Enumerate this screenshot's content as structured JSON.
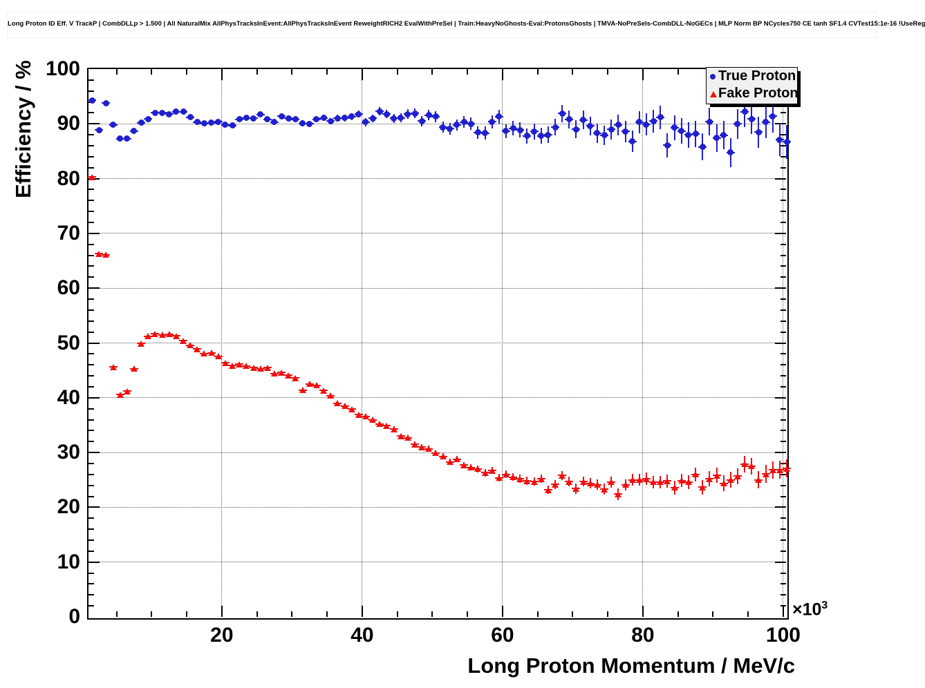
{
  "header": {
    "title": "Long Proton ID Eff. V TrackP | CombDLLp > 1.500 | All NaturalMix AllPhysTracksInEvent:AllPhysTracksInEvent ReweightRICH2 EvalWithPreSel | Train:HeavyNoGhosts-Eval:ProtonsGhosts | TMVA-NoPreSels-CombDLL-NoGECs | MLP Norm BP NCycles750 CE tanh SF1.4 CVTest15:1e-16 !UseReg"
  },
  "axes": {
    "y_title": "Efficiency / %",
    "x_title": "Long Proton Momentum / MeV/c",
    "exponent_base": "×10",
    "exponent_power": "3",
    "y_ticks": [
      {
        "v": 0,
        "label": "0"
      },
      {
        "v": 10,
        "label": "10"
      },
      {
        "v": 20,
        "label": "20"
      },
      {
        "v": 30,
        "label": "30"
      },
      {
        "v": 40,
        "label": "40"
      },
      {
        "v": 50,
        "label": "50"
      },
      {
        "v": 60,
        "label": "60"
      },
      {
        "v": 70,
        "label": "70"
      },
      {
        "v": 80,
        "label": "80"
      },
      {
        "v": 90,
        "label": "90"
      },
      {
        "v": 100,
        "label": "100"
      }
    ],
    "x_ticks": [
      {
        "v": 20,
        "label": "20"
      },
      {
        "v": 40,
        "label": "40"
      },
      {
        "v": 60,
        "label": "60"
      },
      {
        "v": 80,
        "label": "80"
      },
      {
        "v": 100,
        "label": "100"
      }
    ]
  },
  "legend": {
    "items": [
      {
        "label": "True Proton",
        "marker": "circle",
        "color": "#2020cc"
      },
      {
        "label": "Fake Proton",
        "marker": "triangle",
        "color": "#ee1111"
      }
    ]
  },
  "chart_data": {
    "type": "scatter",
    "title": "Long Proton ID Eff. V TrackP",
    "xlabel": "Long Proton Momentum / MeV/c",
    "ylabel": "Efficiency / %",
    "x_scale_note": "x values in units of 10^3 MeV/c",
    "xlim": [
      1,
      100.4
    ],
    "ylim": [
      0,
      100
    ],
    "grid": true,
    "grid_style": "dotted",
    "legend_position": "top-right",
    "x_major_ticks": [
      20,
      40,
      60,
      80,
      100
    ],
    "x_minor_step": 5,
    "y_major_step": 10,
    "y_minor_step": 2,
    "series": [
      {
        "name": "True Proton",
        "marker": "circle",
        "color": "#2020cc",
        "xerr": 0.5,
        "x": [
          1.5,
          2.5,
          3.5,
          4.5,
          5.5,
          6.5,
          7.5,
          8.5,
          9.5,
          10.5,
          11.5,
          12.5,
          13.5,
          14.5,
          15.5,
          16.5,
          17.5,
          18.5,
          19.5,
          20.5,
          21.5,
          22.5,
          23.5,
          24.5,
          25.5,
          26.5,
          27.5,
          28.5,
          29.5,
          30.5,
          31.5,
          32.5,
          33.5,
          34.5,
          35.5,
          36.5,
          37.5,
          38.5,
          39.5,
          40.5,
          41.5,
          42.5,
          43.5,
          44.5,
          45.5,
          46.5,
          47.5,
          48.5,
          49.5,
          50.5,
          51.5,
          52.5,
          53.5,
          54.5,
          55.5,
          56.5,
          57.5,
          58.5,
          59.5,
          60.5,
          61.5,
          62.5,
          63.5,
          64.5,
          65.5,
          66.5,
          67.5,
          68.5,
          69.5,
          70.5,
          71.5,
          72.5,
          73.5,
          74.5,
          75.5,
          76.5,
          77.5,
          78.5,
          79.5,
          80.5,
          81.5,
          82.5,
          83.5,
          84.5,
          85.5,
          86.5,
          87.5,
          88.5,
          89.5,
          90.5,
          91.5,
          92.5,
          93.5,
          94.5,
          95.5,
          96.5,
          97.5,
          98.5,
          99.5,
          100.5
        ],
        "y": [
          94.3,
          88.9,
          93.8,
          89.8,
          87.3,
          87.3,
          88.7,
          90.2,
          90.9,
          92.0,
          92.0,
          91.8,
          92.2,
          92.2,
          91.2,
          90.3,
          90.1,
          90.2,
          90.4,
          89.8,
          89.7,
          90.8,
          91.1,
          91.0,
          91.7,
          90.8,
          90.3,
          91.4,
          91.0,
          90.8,
          90.1,
          90.0,
          90.8,
          91.1,
          90.5,
          91.0,
          91.1,
          91.3,
          91.8,
          90.3,
          91.0,
          92.3,
          91.8,
          91.0,
          91.1,
          91.8,
          91.9,
          90.5,
          91.6,
          91.3,
          89.4,
          89.1,
          89.8,
          90.3,
          90.0,
          88.4,
          88.3,
          90.4,
          91.3,
          88.7,
          89.2,
          88.9,
          87.8,
          88.6,
          87.8,
          88.0,
          89.4,
          91.9,
          90.8,
          89.0,
          90.7,
          89.6,
          88.3,
          87.9,
          89.0,
          89.8,
          88.6,
          86.8,
          90.3,
          89.9,
          90.5,
          91.2,
          86.1,
          89.3,
          88.7,
          88.0,
          88.2,
          85.8,
          90.4,
          87.4,
          87.9,
          84.8,
          90.0,
          92.2,
          90.9,
          88.5,
          90.3,
          91.4,
          87.1,
          86.7
        ],
        "yerr": [
          0.25,
          0.25,
          0.25,
          0.26,
          0.26,
          0.26,
          0.27,
          0.27,
          0.28,
          0.28,
          0.29,
          0.29,
          0.3,
          0.31,
          0.32,
          0.33,
          0.34,
          0.35,
          0.36,
          0.37,
          0.38,
          0.39,
          0.4,
          0.42,
          0.43,
          0.45,
          0.46,
          0.48,
          0.49,
          0.51,
          0.53,
          0.55,
          0.56,
          0.58,
          0.6,
          0.62,
          0.64,
          0.67,
          0.69,
          0.71,
          0.73,
          0.76,
          0.78,
          0.8,
          0.83,
          0.86,
          0.88,
          0.91,
          0.94,
          0.96,
          0.99,
          1.02,
          1.05,
          1.08,
          1.11,
          1.14,
          1.18,
          1.21,
          1.24,
          1.27,
          1.31,
          1.34,
          1.38,
          1.42,
          1.45,
          1.49,
          1.53,
          1.56,
          1.6,
          1.64,
          1.68,
          1.72,
          1.76,
          1.8,
          1.85,
          1.89,
          1.93,
          1.97,
          2.02,
          2.06,
          2.11,
          2.16,
          2.2,
          2.25,
          2.3,
          2.34,
          2.39,
          2.44,
          2.49,
          2.54,
          2.59,
          2.65,
          2.7,
          2.75,
          2.8,
          2.86,
          2.91,
          2.97,
          3.02,
          3.08
        ]
      },
      {
        "name": "Fake Proton",
        "marker": "triangle",
        "color": "#ee1111",
        "xerr": 0.5,
        "x": [
          1.5,
          2.5,
          3.5,
          4.5,
          5.5,
          6.5,
          7.5,
          8.5,
          9.5,
          10.5,
          11.5,
          12.5,
          13.5,
          14.5,
          15.5,
          16.5,
          17.5,
          18.5,
          19.5,
          20.5,
          21.5,
          22.5,
          23.5,
          24.5,
          25.5,
          26.5,
          27.5,
          28.5,
          29.5,
          30.5,
          31.5,
          32.5,
          33.5,
          34.5,
          35.5,
          36.5,
          37.5,
          38.5,
          39.5,
          40.5,
          41.5,
          42.5,
          43.5,
          44.5,
          45.5,
          46.5,
          47.5,
          48.5,
          49.5,
          50.5,
          51.5,
          52.5,
          53.5,
          54.5,
          55.5,
          56.5,
          57.5,
          58.5,
          59.5,
          60.5,
          61.5,
          62.5,
          63.5,
          64.5,
          65.5,
          66.5,
          67.5,
          68.5,
          69.5,
          70.5,
          71.5,
          72.5,
          73.5,
          74.5,
          75.5,
          76.5,
          77.5,
          78.5,
          79.5,
          80.5,
          81.5,
          82.5,
          83.5,
          84.5,
          85.5,
          86.5,
          87.5,
          88.5,
          89.5,
          90.5,
          91.5,
          92.5,
          93.5,
          94.5,
          95.5,
          96.5,
          97.5,
          98.5,
          99.5,
          100.5
        ],
        "y": [
          80.3,
          66.3,
          66.1,
          45.6,
          40.6,
          41.2,
          45.3,
          49.9,
          51.2,
          51.7,
          51.5,
          51.6,
          51.3,
          50.4,
          49.6,
          48.9,
          48.1,
          48.2,
          47.6,
          46.4,
          45.9,
          46.1,
          45.8,
          45.5,
          45.3,
          45.5,
          44.4,
          44.6,
          44.1,
          43.6,
          41.4,
          42.5,
          42.3,
          41.3,
          40.4,
          39.0,
          38.5,
          37.9,
          36.9,
          36.6,
          36.0,
          35.2,
          34.9,
          34.3,
          33.0,
          32.7,
          31.5,
          31.0,
          30.7,
          29.9,
          29.3,
          28.3,
          28.8,
          27.7,
          27.3,
          27.0,
          26.3,
          26.7,
          25.4,
          26.0,
          25.5,
          25.2,
          24.8,
          24.7,
          25.2,
          23.2,
          24.2,
          25.8,
          24.7,
          23.4,
          24.7,
          24.4,
          24.1,
          23.3,
          24.6,
          22.4,
          24.1,
          25.0,
          25.0,
          25.2,
          24.6,
          24.6,
          24.8,
          23.6,
          24.9,
          24.6,
          26.0,
          23.7,
          25.2,
          25.8,
          24.4,
          25.0,
          25.7,
          27.9,
          27.5,
          25.0,
          26.1,
          26.8,
          26.8,
          27.1
        ],
        "yerr": [
          0.15,
          0.15,
          0.15,
          0.15,
          0.15,
          0.16,
          0.16,
          0.16,
          0.16,
          0.17,
          0.17,
          0.17,
          0.18,
          0.18,
          0.19,
          0.19,
          0.2,
          0.2,
          0.21,
          0.21,
          0.22,
          0.23,
          0.23,
          0.24,
          0.25,
          0.26,
          0.26,
          0.27,
          0.28,
          0.29,
          0.3,
          0.31,
          0.32,
          0.33,
          0.34,
          0.35,
          0.36,
          0.37,
          0.38,
          0.4,
          0.41,
          0.42,
          0.43,
          0.45,
          0.46,
          0.47,
          0.49,
          0.5,
          0.52,
          0.53,
          0.55,
          0.56,
          0.58,
          0.6,
          0.61,
          0.63,
          0.65,
          0.66,
          0.68,
          0.7,
          0.72,
          0.74,
          0.75,
          0.77,
          0.79,
          0.81,
          0.83,
          0.85,
          0.87,
          0.9,
          0.92,
          0.94,
          0.96,
          0.98,
          1.01,
          1.03,
          1.05,
          1.07,
          1.1,
          1.12,
          1.15,
          1.17,
          1.2,
          1.22,
          1.25,
          1.27,
          1.3,
          1.32,
          1.35,
          1.38,
          1.41,
          1.43,
          1.46,
          1.49,
          1.52,
          1.55,
          1.58,
          1.61,
          1.64,
          1.67
        ]
      }
    ]
  }
}
